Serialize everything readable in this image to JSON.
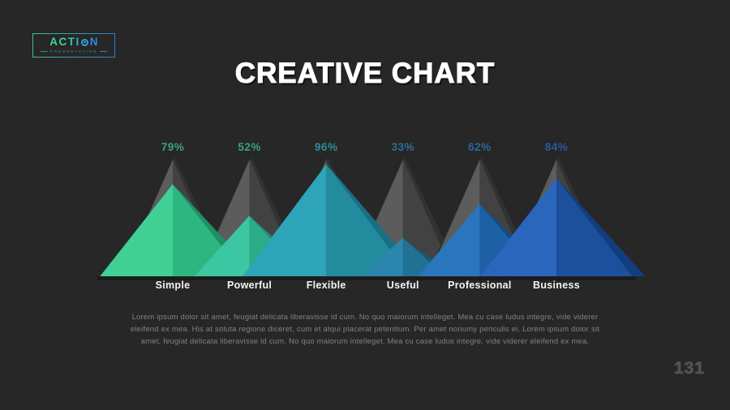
{
  "slide": {
    "background_color": "#272727",
    "title": "CREATIVE CHART",
    "page_number": "131"
  },
  "logo": {
    "name": "ACTION",
    "tagline": "PRESENTATION",
    "border_gradient": [
      "#39c18f",
      "#2b7fd2"
    ],
    "letters": [
      {
        "char": "A",
        "color": "#3fd495",
        "ring": false
      },
      {
        "char": "C",
        "color": "#3cd0a4",
        "ring": false
      },
      {
        "char": "T",
        "color": "#36c4bb",
        "ring": false
      },
      {
        "char": "I",
        "color": "#30b2d1",
        "ring": false
      },
      {
        "char": "O",
        "color": "#2c9edd",
        "ring": true
      },
      {
        "char": "N",
        "color": "#2a8ae0",
        "ring": false
      }
    ]
  },
  "chart_data": {
    "type": "bar",
    "style": "mountain-peak-pyramids",
    "unit": "%",
    "max_value": 100,
    "categories": [
      "Simple",
      "Powerful",
      "Flexible",
      "Useful",
      "Professional",
      "Business"
    ],
    "values": [
      79,
      52,
      96,
      33,
      62,
      84
    ],
    "value_labels": [
      "79%",
      "52%",
      "96%",
      "33%",
      "62%",
      "84%"
    ],
    "series_colors": [
      {
        "left": "#40d096",
        "right": "#2db680",
        "shadow": "#1f9066",
        "label": "#3da181"
      },
      {
        "left": "#3bc7a1",
        "right": "#2cab89",
        "shadow": "#1e8a6d",
        "label": "#3aa289"
      },
      {
        "left": "#2ea4b8",
        "right": "#238b9e",
        "shadow": "#187082",
        "label": "#2e8b9e"
      },
      {
        "left": "#2b86ad",
        "right": "#207194",
        "shadow": "#155a72",
        "label": "#2a7195"
      },
      {
        "left": "#2a76bd",
        "right": "#1d60a4",
        "shadow": "#124b86",
        "label": "#2a66a4"
      },
      {
        "left": "#2a66bb",
        "right": "#1c4f9c",
        "shadow": "#123d7e",
        "label": "#2a5aa0"
      }
    ],
    "background_pyramid_colors": {
      "back": "#323232",
      "left": "#5c5c5c",
      "right": "#424242"
    },
    "ground_shadow_color": "#1c1c1c",
    "legend_position": "none",
    "grid": false
  },
  "body_text": "Lorem ipsum dolor sit amet, feugiat delicata liberavisse id cum. No quo maiorum intelleget. Mea cu case ludus integre, vide viderer eleifend ex mea. His at soluta regione diceret, cum et atqui placerat petentium. Per amet nonumy periculis ei. Lorem ipsum dolor sit amet, feugiat delicata liberavisse id cum. No quo maiorum intelleget. Mea cu case ludus integre, vide viderer eleifend ex mea."
}
